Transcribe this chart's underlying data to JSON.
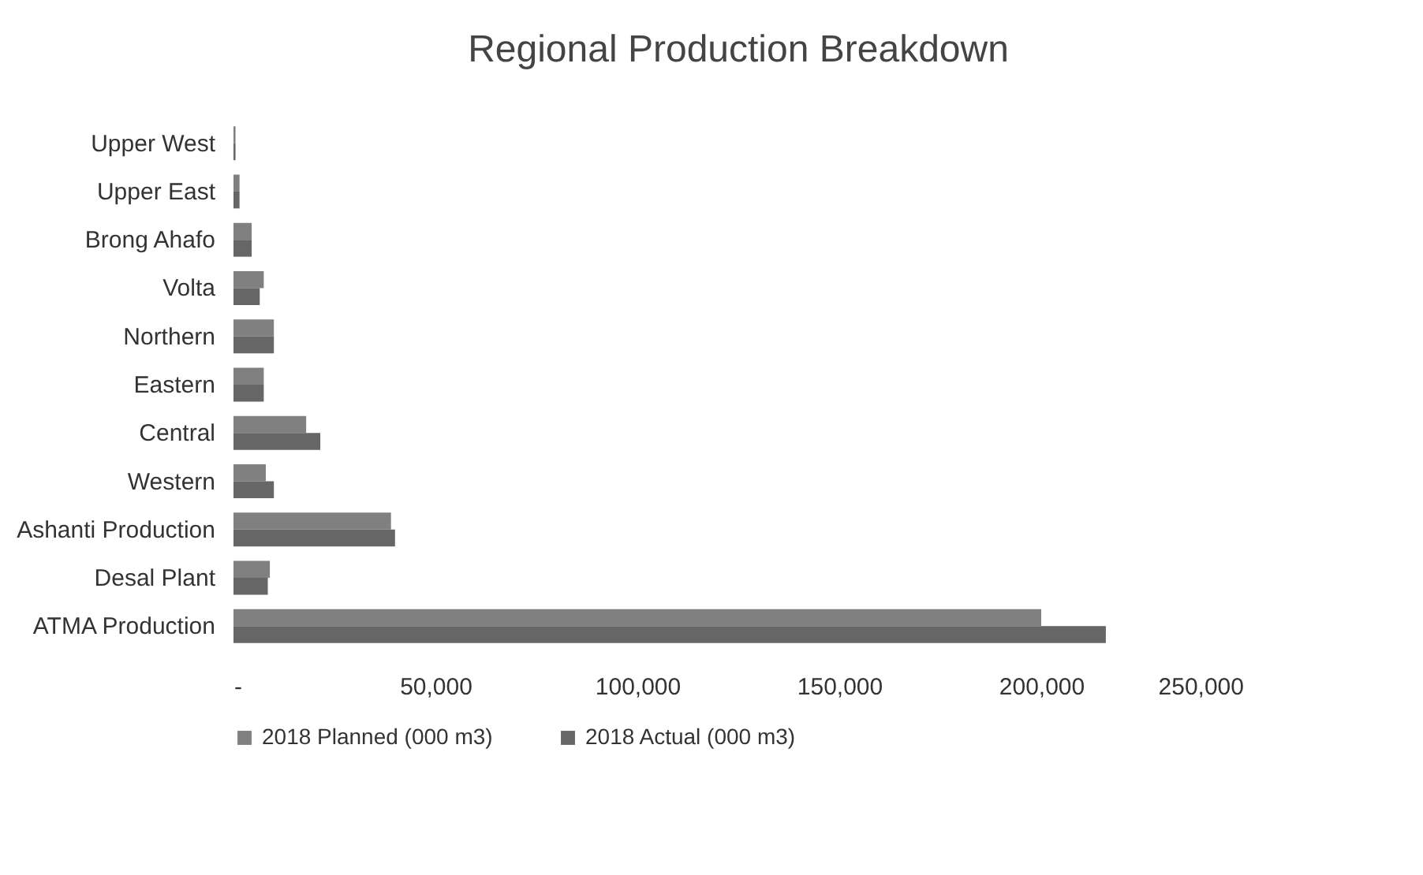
{
  "chart_data": {
    "type": "bar",
    "orientation": "horizontal",
    "title": "Regional Production Breakdown",
    "categories": [
      "Upper West",
      "Upper East",
      "Brong Ahafo",
      "Volta",
      "Northern",
      "Eastern",
      "Central",
      "Western",
      "Ashanti Production",
      "Desal Plant",
      "ATMA Production"
    ],
    "series": [
      {
        "name": "2018 Planned (000 m3)",
        "color": "#808080",
        "values": [
          500,
          1500,
          4500,
          7500,
          10000,
          7500,
          18000,
          8000,
          39000,
          9000,
          200000
        ]
      },
      {
        "name": "2018 Actual (000 m3)",
        "color": "#666666",
        "values": [
          500,
          1500,
          4500,
          6500,
          10000,
          7500,
          21500,
          10000,
          40000,
          8500,
          216000
        ]
      }
    ],
    "xlim": [
      0,
      250000
    ],
    "xticks": [
      {
        "value": 0,
        "label": "-"
      },
      {
        "value": 50000,
        "label": "50,000"
      },
      {
        "value": 100000,
        "label": "100,000"
      },
      {
        "value": 150000,
        "label": "150,000"
      },
      {
        "value": 200000,
        "label": "200,000"
      },
      {
        "value": 250000,
        "label": "250,000"
      }
    ],
    "grid": false,
    "legend": "bottom"
  }
}
